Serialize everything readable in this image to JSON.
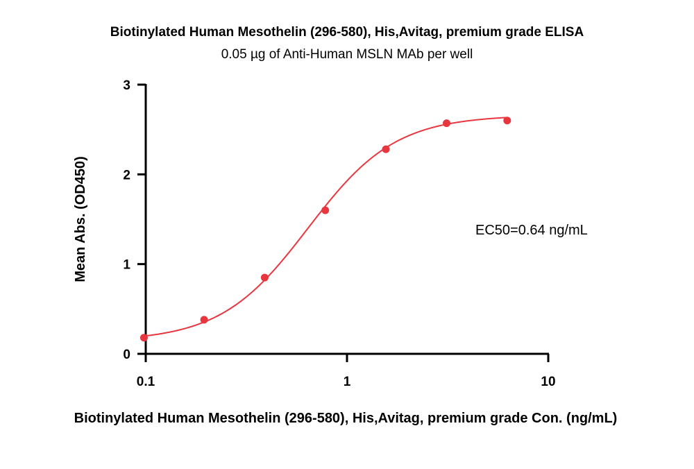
{
  "chart_data": {
    "type": "scatter",
    "title": "Biotinylated Human Mesothelin (296-580), His,Avitag, premium grade ELISA",
    "subtitle": "0.05 µg of Anti-Human MSLN MAb  per well",
    "xlabel": "Biotinylated Human Mesothelin (296-580), His,Avitag, premium grade Con. (ng/mL)",
    "ylabel": "Mean Abs. (OD450)",
    "x_scale": "log",
    "xlim": [
      0.1,
      10
    ],
    "ylim": [
      0,
      3
    ],
    "x_ticks": [
      0.1,
      1,
      10
    ],
    "x_tick_labels": [
      "0.1",
      "1",
      "10"
    ],
    "y_ticks": [
      0,
      1,
      2,
      3
    ],
    "y_tick_labels": [
      "0",
      "1",
      "2",
      "3"
    ],
    "grid": false,
    "series": [
      {
        "x": [
          0.098,
          0.195,
          0.39,
          0.78,
          1.56,
          3.125,
          6.25
        ],
        "y": [
          0.18,
          0.38,
          0.85,
          1.6,
          2.28,
          2.57,
          2.6
        ]
      }
    ],
    "fit_curve": {
      "model": "4PL",
      "bottom": 0.14,
      "top": 2.66,
      "ec50": 0.64,
      "hill": 2.0
    },
    "annotation": "EC50=0.64 ng/mL",
    "colors": {
      "series": "#e8363f",
      "axis": "#000000"
    }
  }
}
